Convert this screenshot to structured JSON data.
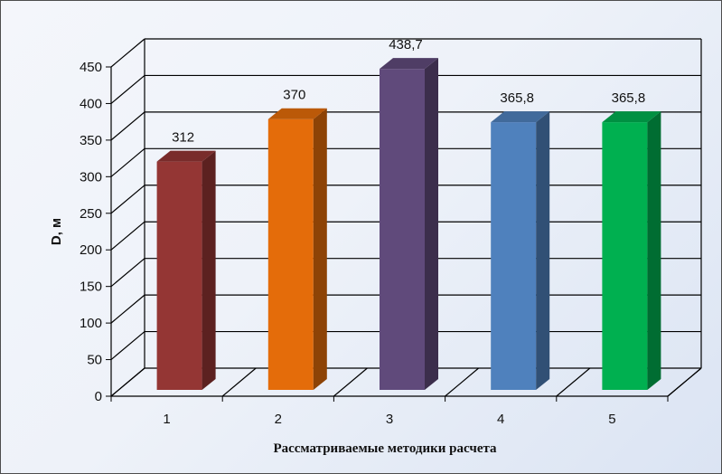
{
  "chart_data": {
    "type": "bar",
    "categories": [
      "1",
      "2",
      "3",
      "4",
      "5"
    ],
    "values": [
      312,
      370,
      438.7,
      365.8,
      365.8
    ],
    "value_labels": [
      "312",
      "370",
      "438,7",
      "365,8",
      "365,8"
    ],
    "bar_colors": [
      "#943634",
      "#e46c0a",
      "#604a7b",
      "#4f81bd",
      "#00b050"
    ],
    "xlabel": "Рассматриваемые методики расчета",
    "ylabel": "D, м",
    "ylim": [
      0,
      450
    ],
    "yticks": [
      0,
      50,
      100,
      150,
      200,
      250,
      300,
      350,
      400,
      450
    ],
    "style": "3d-column",
    "grid": true
  }
}
